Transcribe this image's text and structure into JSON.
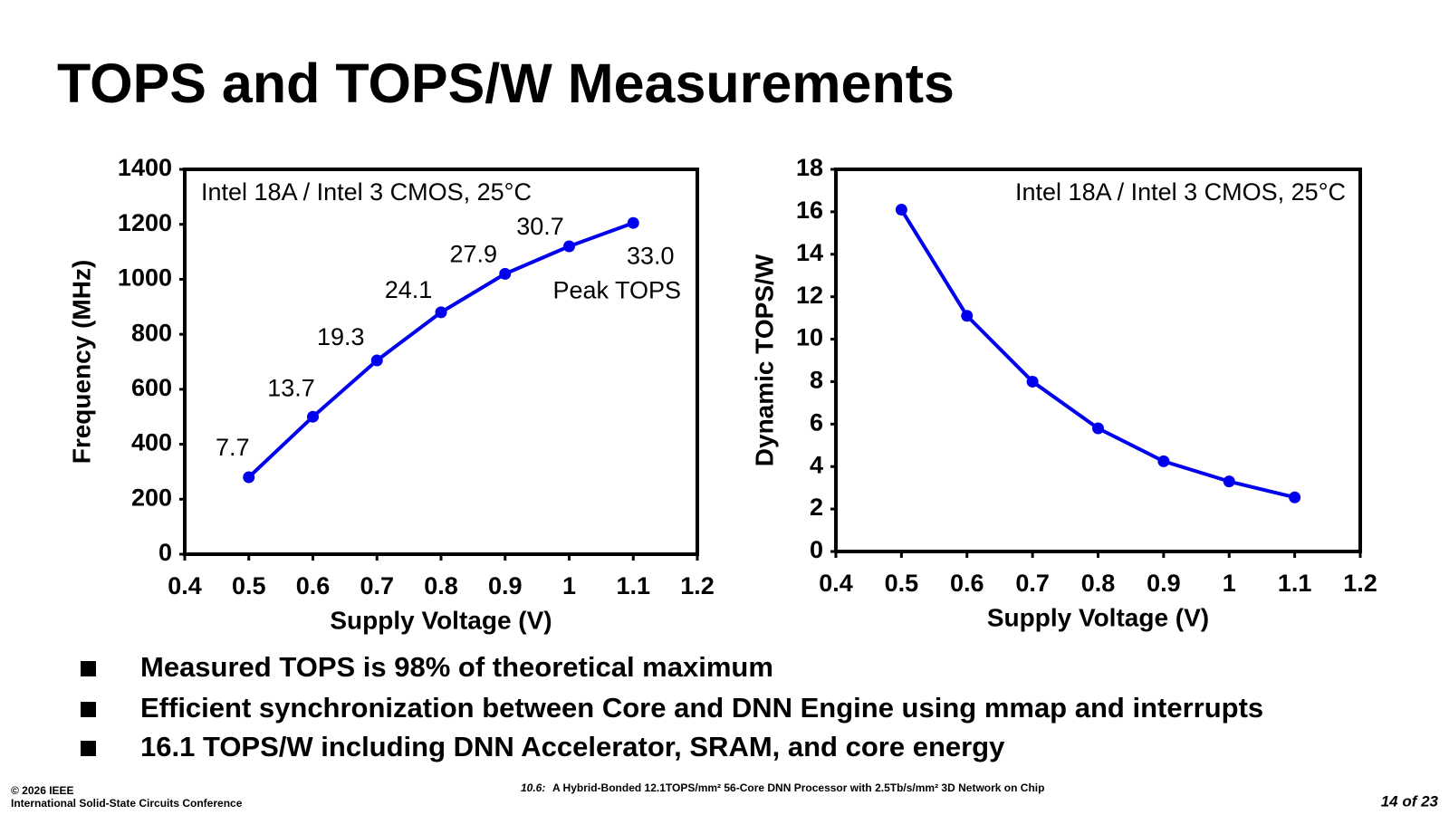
{
  "slide": {
    "title": "TOPS and TOPS/W Measurements",
    "bullets": [
      "Measured TOPS is 98% of theoretical maximum",
      "Efficient synchronization between Core and DNN Engine using mmap and interrupts",
      "16.1 TOPS/W including DNN Accelerator, SRAM, and core energy"
    ],
    "footer_left": [
      "© 2026 IEEE",
      "International Solid-State Circuits Conference"
    ],
    "footer_center_prefix": "10.6:",
    "footer_center": "A Hybrid-Bonded 12.1TOPS/mm² 56-Core DNN Processor with 2.5Tb/s/mm² 3D Network on Chip",
    "page": "14 of 23"
  },
  "chart_data": [
    {
      "type": "line",
      "x_label": "Supply Voltage (V)",
      "y_label": "Frequency (MHz)",
      "annotation": "Intel 18A / Intel 3 CMOS, 25°C",
      "x": [
        0.5,
        0.6,
        0.7,
        0.8,
        0.9,
        1,
        1.1
      ],
      "values": [
        280,
        500,
        705,
        880,
        1020,
        1120,
        1205
      ],
      "point_labels": [
        "7.7",
        "13.7",
        "19.3",
        "24.1",
        "27.9",
        "30.7",
        "33.0"
      ],
      "peak_label": "Peak TOPS",
      "color": "#0000ee",
      "xlim": [
        0.4,
        1.2
      ],
      "xticks": [
        0.4,
        0.5,
        0.6,
        0.7,
        0.8,
        0.9,
        1,
        1.1,
        1.2
      ],
      "ylim": [
        0,
        1400
      ],
      "yticks": [
        0,
        200,
        400,
        600,
        800,
        1000,
        1200,
        1400
      ],
      "grid": false
    },
    {
      "type": "line",
      "x_label": "Supply Voltage (V)",
      "y_label": "Dynamic TOPS/W",
      "annotation": "Intel 18A / Intel 3 CMOS, 25°C",
      "x": [
        0.5,
        0.6,
        0.7,
        0.8,
        0.9,
        1,
        1.1
      ],
      "values": [
        16.1,
        11.1,
        8.0,
        5.8,
        4.25,
        3.3,
        2.55
      ],
      "color": "#0000ee",
      "xlim": [
        0.4,
        1.2
      ],
      "xticks": [
        0.4,
        0.5,
        0.6,
        0.7,
        0.8,
        0.9,
        1,
        1.1,
        1.2
      ],
      "ylim": [
        0,
        18
      ],
      "yticks": [
        0,
        2,
        4,
        6,
        8,
        10,
        12,
        14,
        16,
        18
      ],
      "grid": false
    }
  ]
}
